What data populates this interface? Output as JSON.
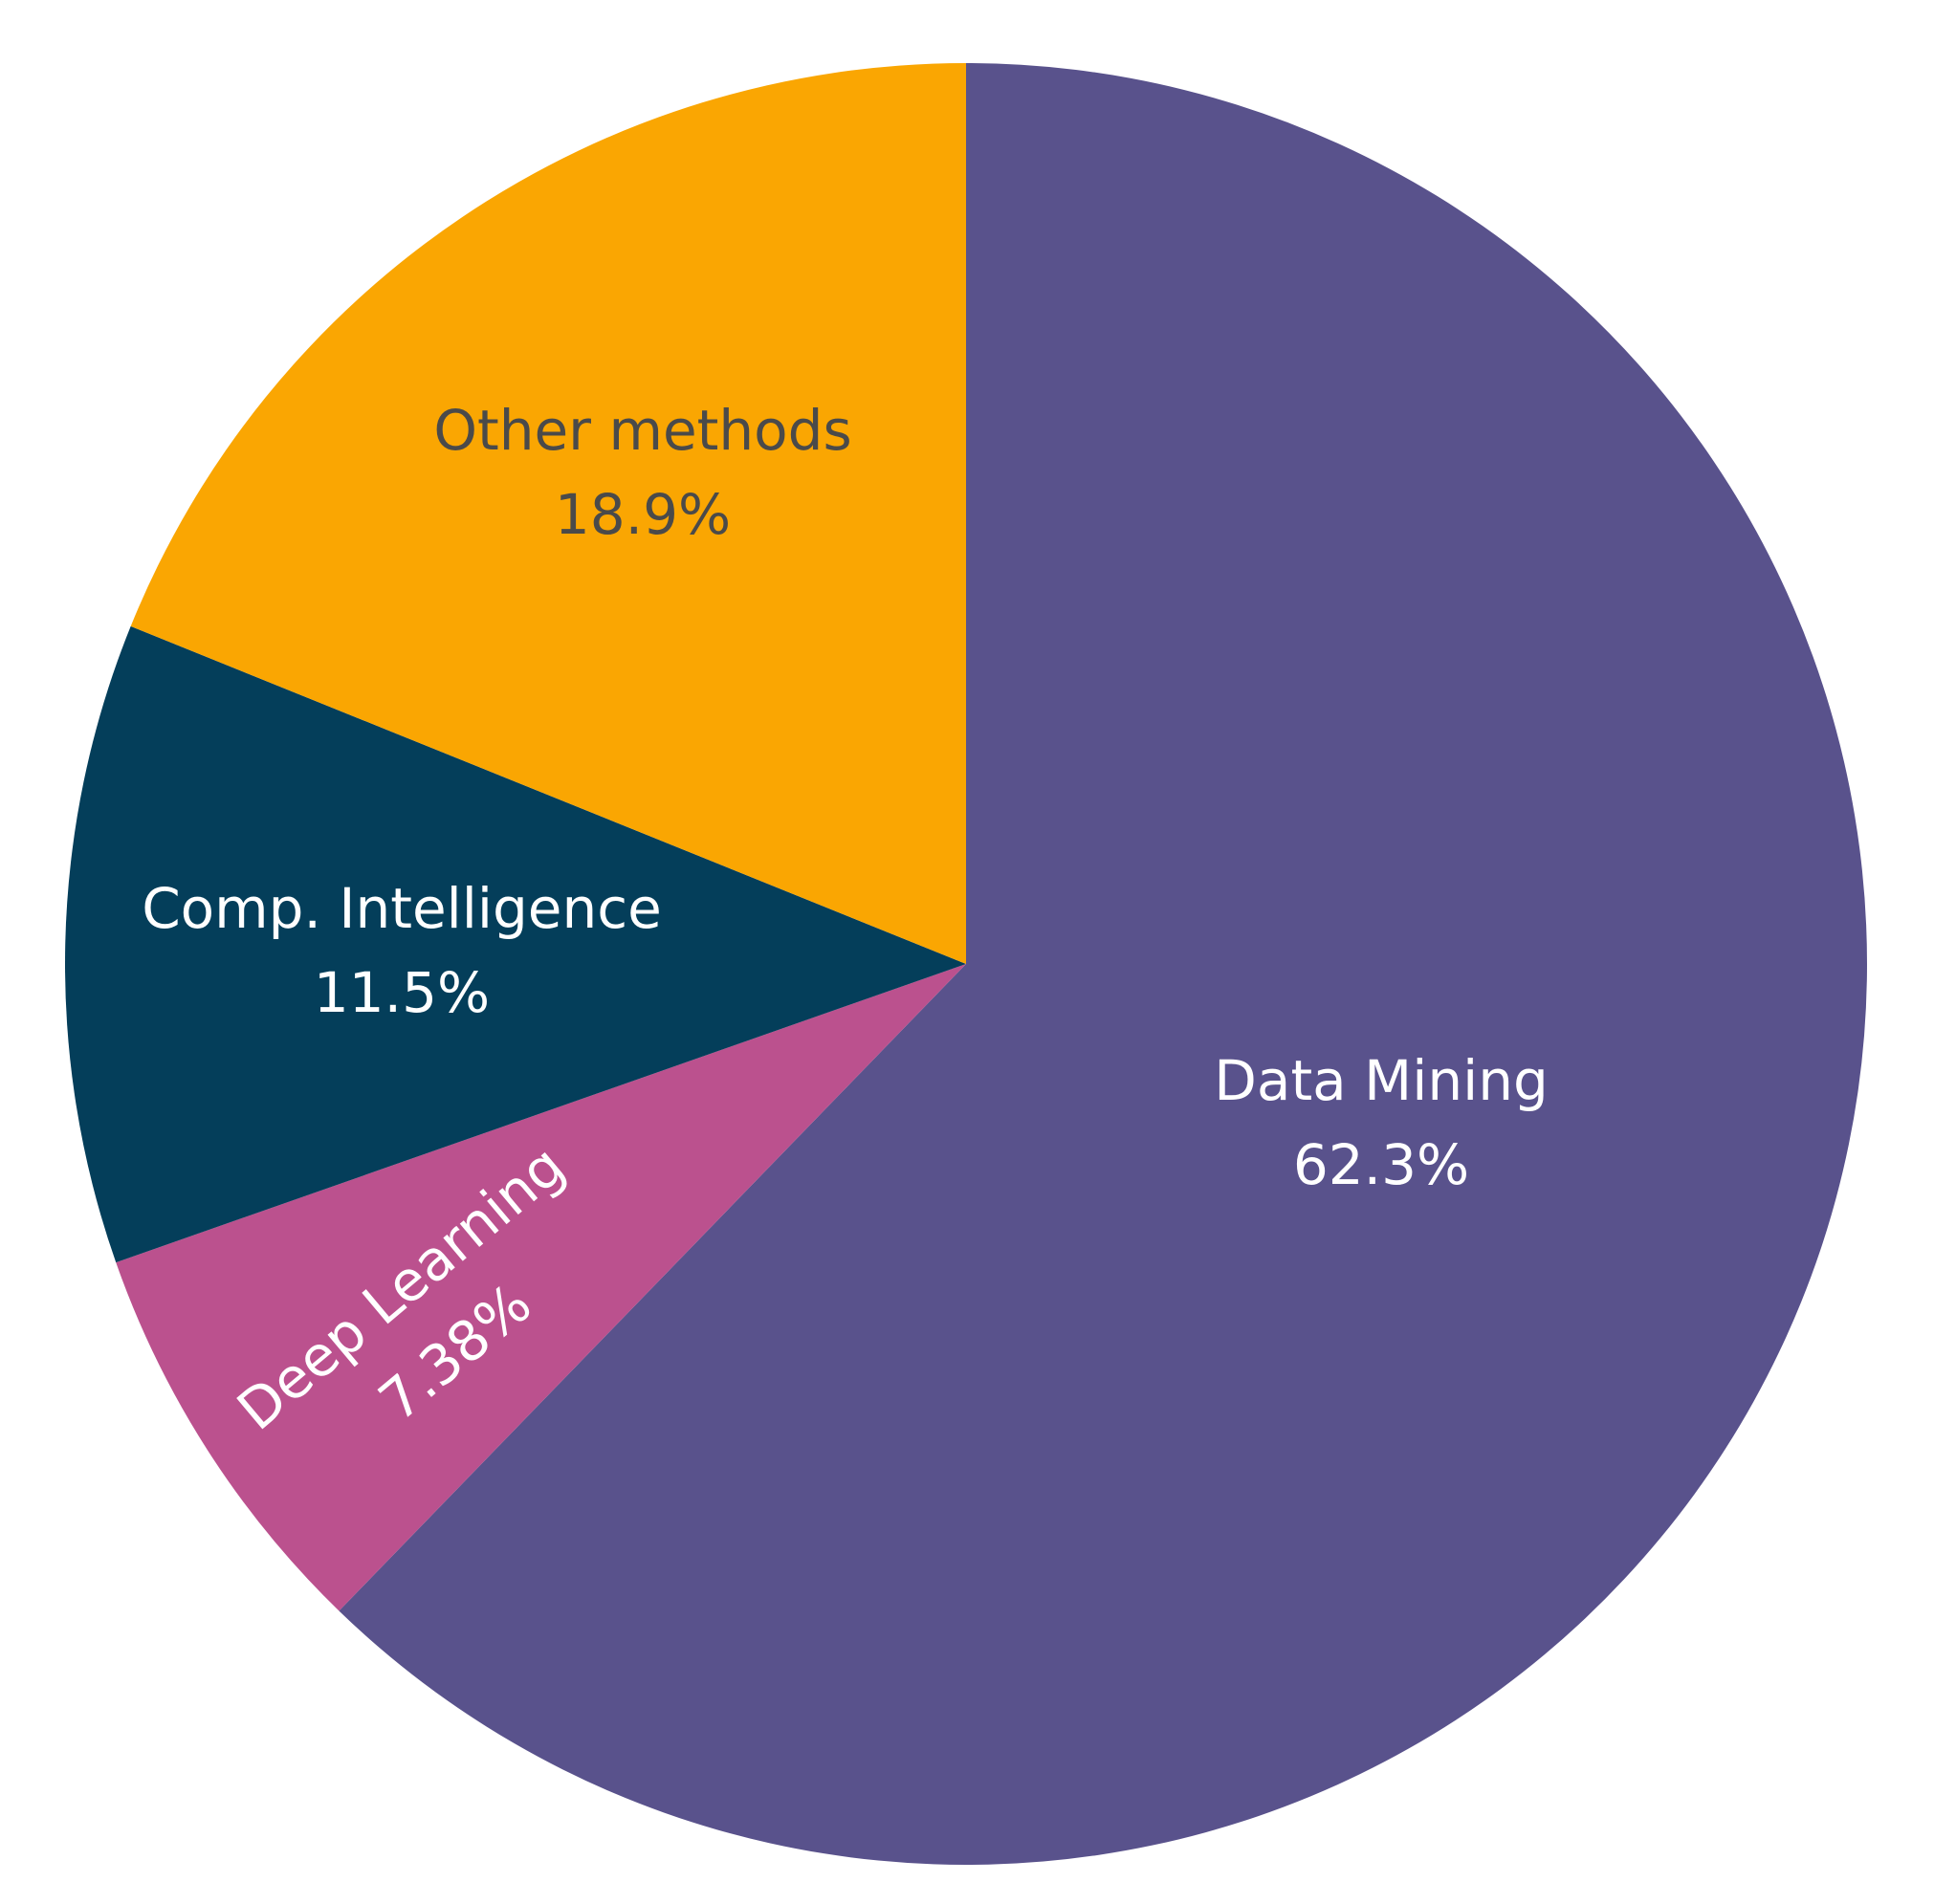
{
  "chart_data": {
    "type": "pie",
    "start_angle_deg": 0,
    "direction": "clockwise",
    "slices": [
      {
        "label": "Data Mining",
        "value": 62.3,
        "value_text": "62.3%",
        "color": "#59528c",
        "text_color": "#ffffff"
      },
      {
        "label": "Deep Learning",
        "value": 7.38,
        "value_text": "7.38%",
        "color": "#bb518e",
        "text_color": "#ffffff"
      },
      {
        "label": "Comp. Intelligence",
        "value": 11.5,
        "value_text": "11.5%",
        "color": "#043e5a",
        "text_color": "#ffffff"
      },
      {
        "label": "Other methods",
        "value": 18.9,
        "value_text": "18.9%",
        "color": "#faa602",
        "text_color": "#4a4a4a"
      }
    ]
  }
}
